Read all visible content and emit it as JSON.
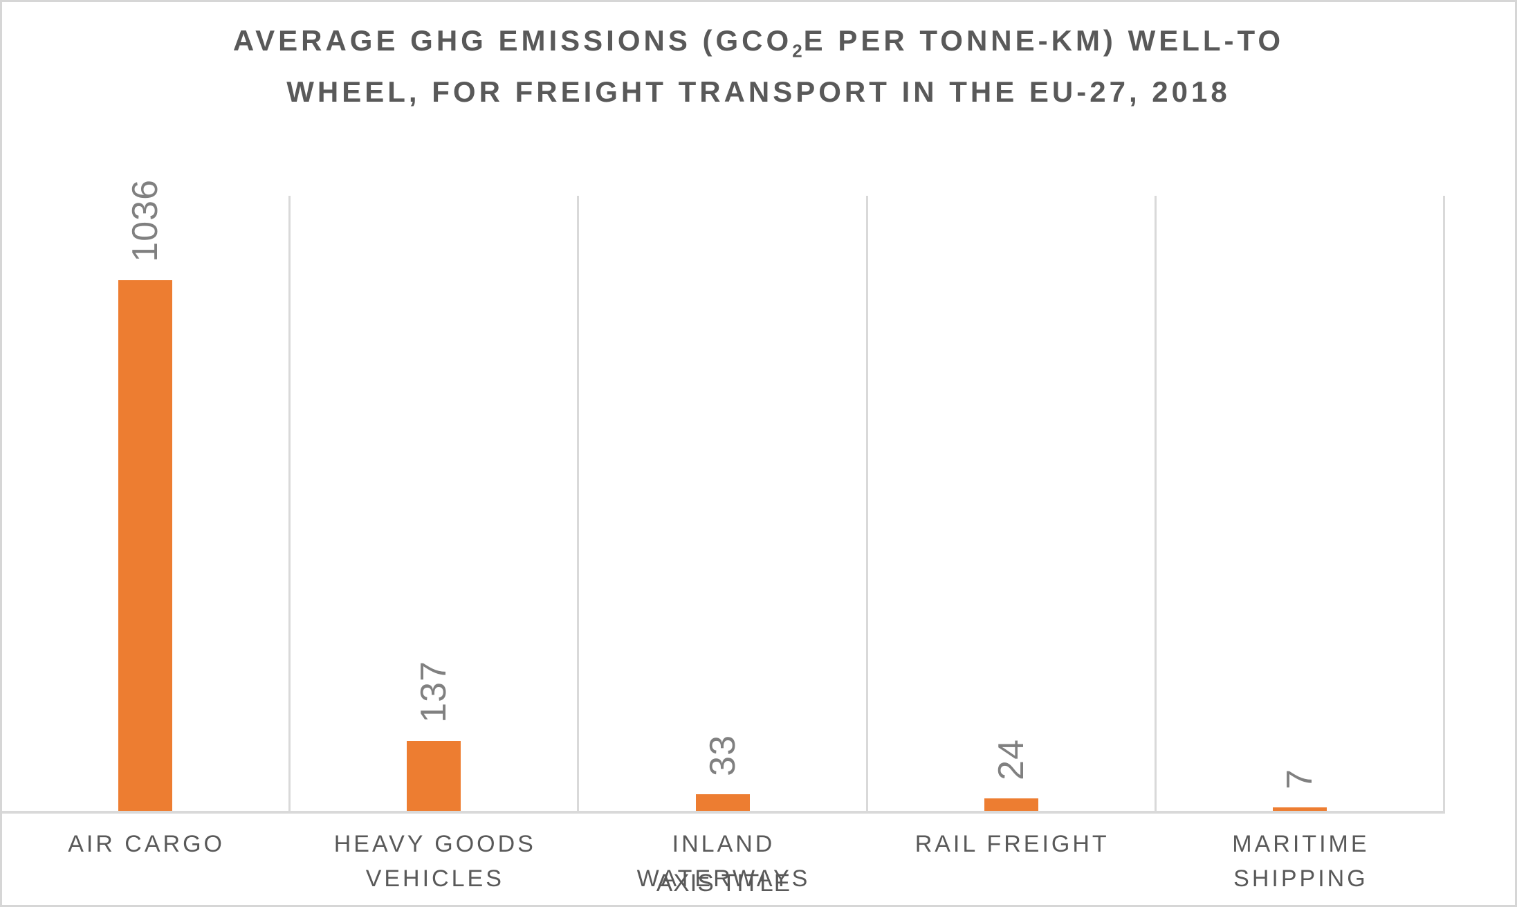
{
  "chart_data": {
    "type": "bar",
    "title_line1_pre": "AVERAGE GHG EMISSIONS (GCO",
    "title_subscript": "2",
    "title_line1_post": "E PER TONNE-KM) WELL-TO",
    "title_line2": "WHEEL, FOR FREIGHT TRANSPORT IN THE EU-27, 2018",
    "title_full": "AVERAGE GHG EMISSIONS (GCO2E PER TONNE-KM) WELL-TO WHEEL, FOR FREIGHT TRANSPORT IN THE EU-27, 2018",
    "categories": [
      "AIR CARGO",
      "HEAVY GOODS VEHICLES",
      "INLAND WATERWAYS",
      "RAIL FREIGHT",
      "MARITIME SHIPPING"
    ],
    "values": [
      1036,
      137,
      33,
      24,
      7
    ],
    "xlabel": "AXIS TITLE",
    "ylabel": "",
    "ylim": [
      0,
      1200
    ],
    "y_axis_labels_visible": false,
    "legend": "none",
    "grid": "vertical category separators only",
    "data_label_style": "rotated 270deg above each bar",
    "colors": {
      "bar": "#ED7D31",
      "title_text": "#595959",
      "category_text": "#595959",
      "data_label_text": "#808080",
      "gridline": "#D9D9D9",
      "axis_line": "#D9D9D9",
      "frame_border": "#D6D6D6",
      "background": "#FFFFFF"
    }
  }
}
